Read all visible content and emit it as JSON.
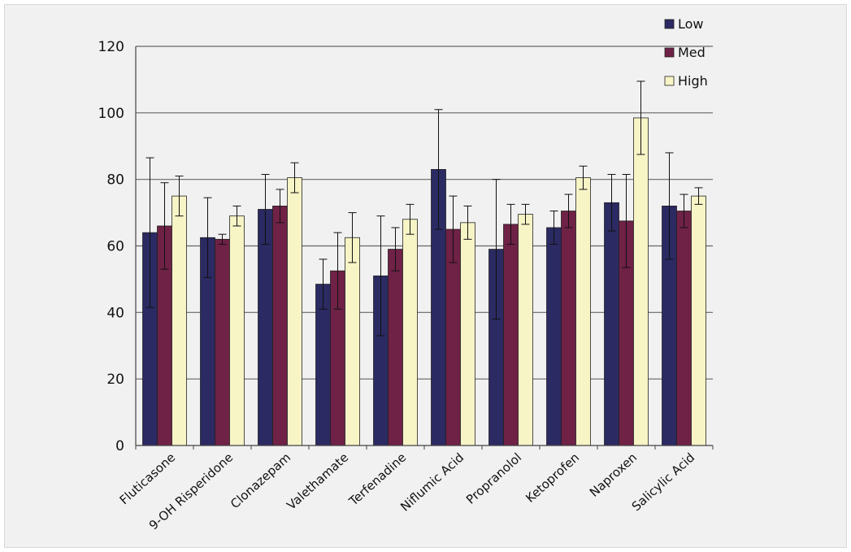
{
  "chart_data": {
    "type": "bar",
    "title": "",
    "xlabel": "",
    "ylabel": "",
    "ylim": [
      0,
      120
    ],
    "yticks": [
      0,
      20,
      40,
      60,
      80,
      100,
      120
    ],
    "grid": true,
    "legend_position": "top-right",
    "categories": [
      "Fluticasone",
      "9-OH Risperidone",
      "Clonazepam",
      "Valethamate",
      "Terfenadine",
      "Niflumic Acid",
      "Propranolol",
      "Ketoprofen",
      "Naproxen",
      "Salicylic Acid"
    ],
    "series": [
      {
        "name": "Low",
        "color": "#2b2a63",
        "values": [
          64,
          62.5,
          71,
          48.5,
          51,
          83,
          59,
          65.5,
          73,
          72
        ],
        "errors": [
          22.5,
          12,
          10.5,
          7.5,
          18,
          18,
          21,
          5,
          8.5,
          16
        ]
      },
      {
        "name": "Med",
        "color": "#6f2146",
        "values": [
          66,
          62,
          72,
          52.5,
          59,
          65,
          66.5,
          70.5,
          67.5,
          70.5
        ],
        "errors": [
          13,
          1.5,
          5,
          11.5,
          6.5,
          10,
          6,
          5,
          14,
          5
        ]
      },
      {
        "name": "High",
        "color": "#f7f4c6",
        "values": [
          75,
          69,
          80.5,
          62.5,
          68,
          67,
          69.5,
          80.5,
          98.5,
          75
        ],
        "errors": [
          6,
          3,
          4.5,
          7.5,
          4.5,
          5,
          3,
          3.5,
          11,
          2.5
        ]
      }
    ]
  }
}
